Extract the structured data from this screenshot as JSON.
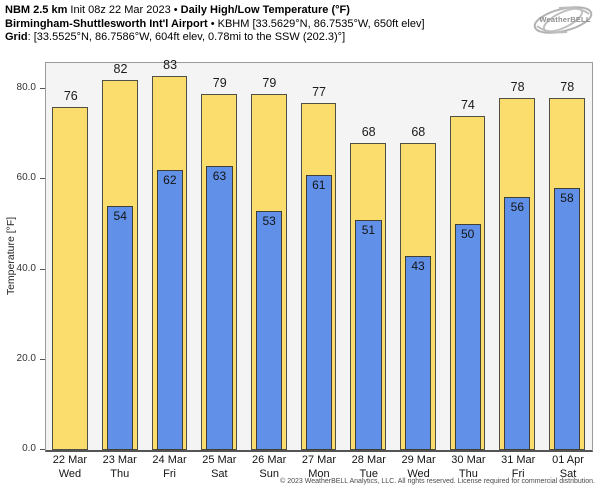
{
  "header": {
    "line1": {
      "bold1": "NBM 2.5 km",
      "regular1": " Init 08z 22 Mar 2023 • ",
      "bold2": "Daily High/Low Temperature (°F)"
    },
    "line2": {
      "bold": "Birmingham-Shuttlesworth Int'l Airport",
      "regular": " • KBHM [33.5629°N, 86.7535°W, 650ft elev]"
    },
    "line3": {
      "bold": "Grid",
      "regular": ": [33.5525°N, 86.7586°W, 604ft elev, 0.78mi to the SSW (202.3)°]"
    }
  },
  "logo": {
    "text": "WeatherBELL"
  },
  "chart_data": {
    "type": "bar",
    "title": "Daily High/Low Temperature (°F)",
    "categories": [
      "22 Mar",
      "23 Mar",
      "24 Mar",
      "25 Mar",
      "26 Mar",
      "27 Mar",
      "28 Mar",
      "29 Mar",
      "30 Mar",
      "31 Mar",
      "01 Apr"
    ],
    "weekdays": [
      "Wed",
      "Thu",
      "Fri",
      "Sat",
      "Sun",
      "Mon",
      "Tue",
      "Wed",
      "Thu",
      "Fri",
      "Sat"
    ],
    "series": [
      {
        "name": "High",
        "color": "#fbdd6d",
        "values": [
          76,
          82,
          83,
          79,
          79,
          77,
          68,
          68,
          74,
          78,
          78
        ]
      },
      {
        "name": "Low",
        "color": "#6190e8",
        "values": [
          null,
          54,
          62,
          63,
          53,
          61,
          51,
          43,
          50,
          56,
          58
        ]
      }
    ],
    "ylabel": "Temperature [°F]",
    "yticks": [
      0,
      20,
      40,
      60,
      80
    ],
    "ytick_labels": [
      "0.0",
      "20.0",
      "40.0",
      "60.0",
      "80.0"
    ],
    "ylim": [
      0,
      85.8
    ],
    "grid": false,
    "legend": "none"
  },
  "footer": {
    "copyright": "© 2023 WeatherBELL Analytics, LLC. All rights reserved. License required for commercial distribution."
  },
  "colors": {
    "high": "#fbdd6d",
    "low": "#6190e8",
    "bar_outline": "#4f4f43",
    "plot_bg": "#f4f4f4",
    "axis": "#555555"
  }
}
